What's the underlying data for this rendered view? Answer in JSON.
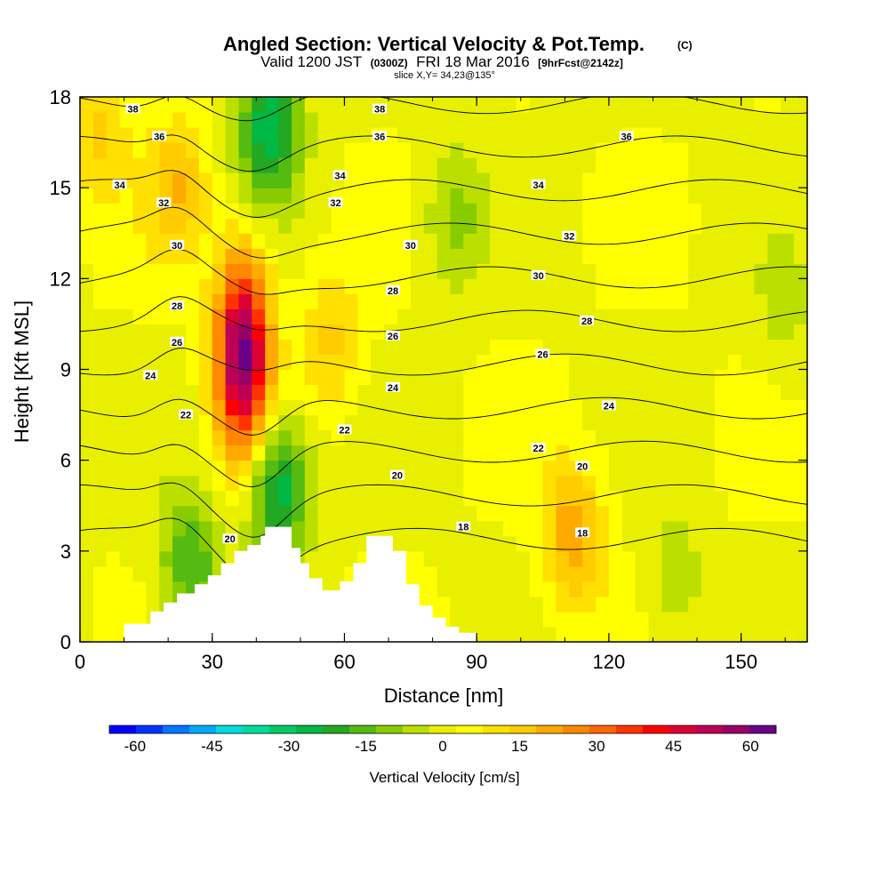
{
  "header": {
    "title": "Angled Section: Vertical Velocity & Pot.Temp.",
    "title_unit": "(C)",
    "valid_prefix": "Valid 1200 JST",
    "valid_utc": "(0300Z)",
    "valid_date": "FRI 18 Mar 2016",
    "valid_fcst": "[9hrFcst@2142z]",
    "slice": "slice X,Y= 34,23@135°"
  },
  "chart_data": {
    "type": "heatmap",
    "title": "Angled Section: Vertical Velocity & Pot.Temp. (C)",
    "xlabel": "Distance [nm]",
    "ylabel": "Height [Kft MSL]",
    "xlim": [
      0,
      165
    ],
    "ylim": [
      0,
      18
    ],
    "x_ticks": [
      "0",
      "30",
      "60",
      "90",
      "120",
      "150"
    ],
    "y_ticks": [
      "0",
      "3",
      "6",
      "9",
      "12",
      "15",
      "18"
    ],
    "x_tick_values": [
      0,
      30,
      60,
      90,
      120,
      150
    ],
    "y_tick_values": [
      0,
      3,
      6,
      9,
      12,
      15,
      18
    ],
    "colorbar": {
      "label": "Vertical Velocity [cm/s]",
      "ticks": [
        "-60",
        "-45",
        "-30",
        "-15",
        "0",
        "15",
        "30",
        "45",
        "60"
      ],
      "tick_values": [
        -60,
        -45,
        -30,
        -15,
        0,
        15,
        30,
        45,
        60
      ],
      "colors": [
        "#0000ff",
        "#0033ff",
        "#0077ff",
        "#00aaff",
        "#00dddd",
        "#00dd99",
        "#00cc66",
        "#00b844",
        "#22a822",
        "#55bb11",
        "#88cc00",
        "#bbe000",
        "#e8f000",
        "#ffff00",
        "#ffe000",
        "#ffcc00",
        "#ffaa00",
        "#ff8800",
        "#ff6600",
        "#ff3300",
        "#ff0000",
        "#dd0033",
        "#bb0055",
        "#990066",
        "#6a0088"
      ],
      "range": [
        -65,
        65
      ]
    },
    "features": [
      {
        "kind": "updraft",
        "x": 37,
        "y": 9.5,
        "peak": 60
      },
      {
        "kind": "updraft",
        "x": 22,
        "y": 15,
        "peak": 15
      },
      {
        "kind": "updraft",
        "x": 57,
        "y": 10,
        "peak": 12
      },
      {
        "kind": "updraft",
        "x": 112,
        "y": 3.5,
        "peak": 20
      },
      {
        "kind": "updraft",
        "x": 4,
        "y": 17,
        "peak": 12
      },
      {
        "kind": "downdraft",
        "x": 43,
        "y": 17,
        "peak": -30
      },
      {
        "kind": "downdraft",
        "x": 45,
        "y": 5,
        "peak": -30
      },
      {
        "kind": "downdraft",
        "x": 25,
        "y": 2.5,
        "peak": -20
      },
      {
        "kind": "downdraft",
        "x": 85,
        "y": 14,
        "peak": -12
      },
      {
        "kind": "downdraft",
        "x": 135,
        "y": 2,
        "peak": -8
      },
      {
        "kind": "downdraft",
        "x": 160,
        "y": 11,
        "peak": -6
      }
    ],
    "terrain": [
      [
        0,
        0
      ],
      [
        10,
        0
      ],
      [
        10,
        0.6
      ],
      [
        16,
        0.6
      ],
      [
        16,
        1
      ],
      [
        19,
        1
      ],
      [
        19,
        1.3
      ],
      [
        22,
        1.3
      ],
      [
        22,
        1.6
      ],
      [
        26,
        1.6
      ],
      [
        26,
        1.9
      ],
      [
        29,
        1.9
      ],
      [
        29,
        2.2
      ],
      [
        32,
        2.2
      ],
      [
        32,
        2.6
      ],
      [
        35,
        2.6
      ],
      [
        35,
        3
      ],
      [
        38,
        3
      ],
      [
        38,
        3.2
      ],
      [
        41,
        3.2
      ],
      [
        41,
        3.5
      ],
      [
        42,
        3.5
      ],
      [
        42,
        3.8
      ],
      [
        48,
        3.8
      ],
      [
        48,
        3.1
      ],
      [
        50,
        3.1
      ],
      [
        50,
        2.6
      ],
      [
        52,
        2.6
      ],
      [
        52,
        2.1
      ],
      [
        55,
        2.1
      ],
      [
        55,
        1.7
      ],
      [
        59,
        1.7
      ],
      [
        59,
        2
      ],
      [
        62,
        2
      ],
      [
        62,
        2.6
      ],
      [
        65,
        2.6
      ],
      [
        65,
        3.5
      ],
      [
        71,
        3.5
      ],
      [
        71,
        3
      ],
      [
        74,
        3
      ],
      [
        74,
        1.9
      ],
      [
        77,
        1.9
      ],
      [
        77,
        1.2
      ],
      [
        80,
        1.2
      ],
      [
        80,
        0.8
      ],
      [
        83,
        0.8
      ],
      [
        83,
        0.5
      ],
      [
        86,
        0.5
      ],
      [
        86,
        0.3
      ],
      [
        90,
        0.3
      ],
      [
        90,
        0
      ],
      [
        0,
        0
      ]
    ],
    "theta_contours": {
      "levels": [
        18,
        20,
        22,
        24,
        26,
        28,
        30,
        32,
        34,
        36,
        38
      ],
      "labels": [
        {
          "text": "38",
          "x": 12,
          "y": 17.6
        },
        {
          "text": "36",
          "x": 18,
          "y": 16.7
        },
        {
          "text": "34",
          "x": 9,
          "y": 15.1
        },
        {
          "text": "32",
          "x": 19,
          "y": 14.5
        },
        {
          "text": "30",
          "x": 22,
          "y": 13.1
        },
        {
          "text": "28",
          "x": 22,
          "y": 11.1
        },
        {
          "text": "26",
          "x": 22,
          "y": 9.9
        },
        {
          "text": "24",
          "x": 16,
          "y": 8.8
        },
        {
          "text": "22",
          "x": 24,
          "y": 7.5
        },
        {
          "text": "20",
          "x": 34,
          "y": 3.4
        },
        {
          "text": "38",
          "x": 68,
          "y": 17.6
        },
        {
          "text": "36",
          "x": 68,
          "y": 16.7
        },
        {
          "text": "34",
          "x": 59,
          "y": 15.4
        },
        {
          "text": "32",
          "x": 58,
          "y": 14.5
        },
        {
          "text": "30",
          "x": 75,
          "y": 13.1
        },
        {
          "text": "28",
          "x": 71,
          "y": 11.6
        },
        {
          "text": "26",
          "x": 71,
          "y": 10.1
        },
        {
          "text": "24",
          "x": 71,
          "y": 8.4
        },
        {
          "text": "22",
          "x": 60,
          "y": 7.0
        },
        {
          "text": "20",
          "x": 72,
          "y": 5.5
        },
        {
          "text": "18",
          "x": 87,
          "y": 3.8
        },
        {
          "text": "36",
          "x": 124,
          "y": 16.7
        },
        {
          "text": "34",
          "x": 104,
          "y": 15.1
        },
        {
          "text": "32",
          "x": 111,
          "y": 13.4
        },
        {
          "text": "30",
          "x": 104,
          "y": 12.1
        },
        {
          "text": "28",
          "x": 115,
          "y": 10.6
        },
        {
          "text": "26",
          "x": 105,
          "y": 9.5
        },
        {
          "text": "24",
          "x": 120,
          "y": 7.8
        },
        {
          "text": "22",
          "x": 104,
          "y": 6.4
        },
        {
          "text": "20",
          "x": 114,
          "y": 5.8
        },
        {
          "text": "18",
          "x": 114,
          "y": 3.6
        }
      ]
    }
  }
}
